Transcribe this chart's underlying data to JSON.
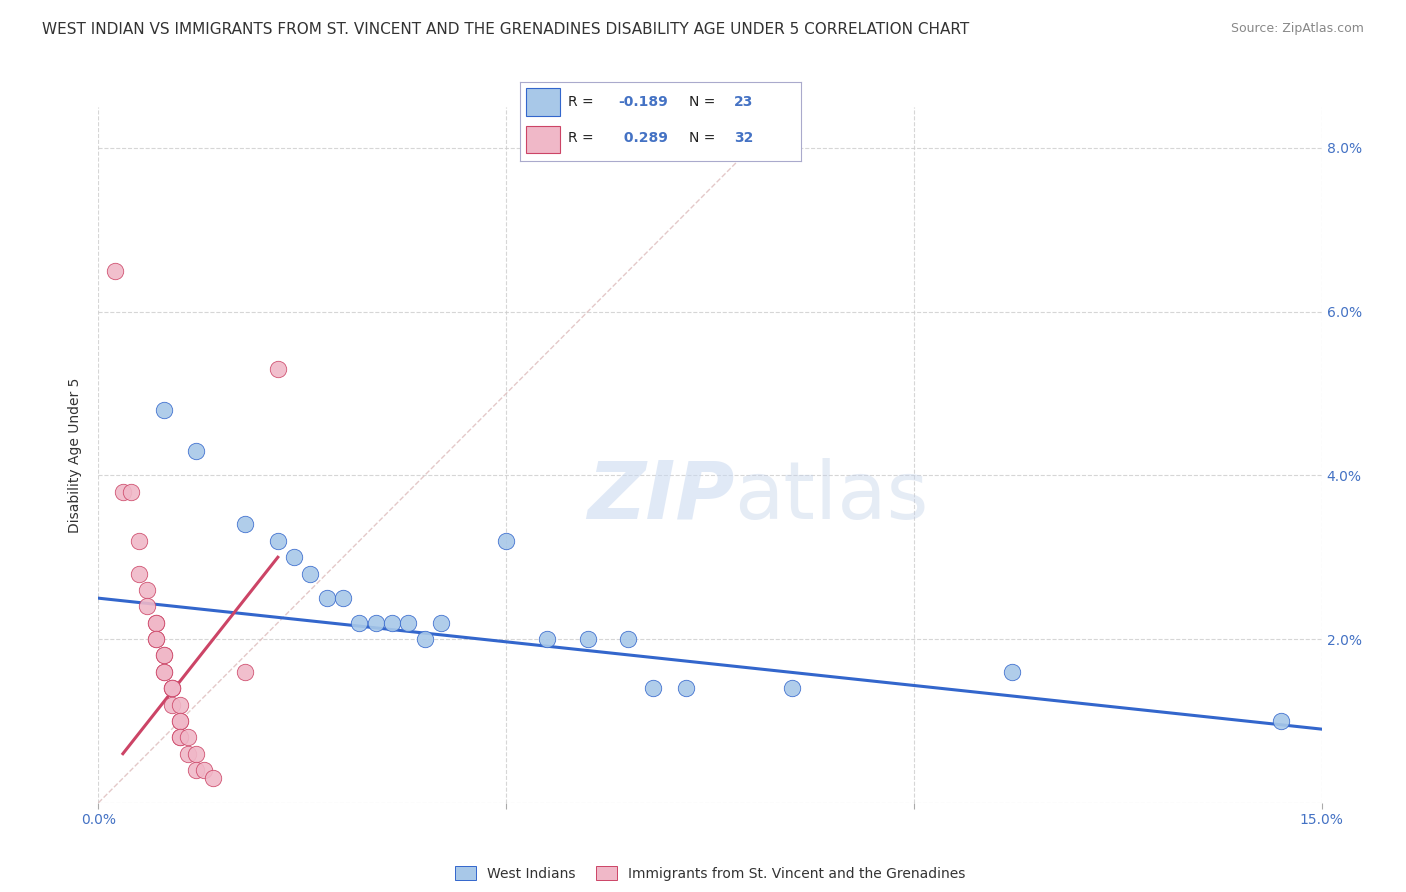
{
  "title": "WEST INDIAN VS IMMIGRANTS FROM ST. VINCENT AND THE GRENADINES DISABILITY AGE UNDER 5 CORRELATION CHART",
  "source": "Source: ZipAtlas.com",
  "ylabel": "Disability Age Under 5",
  "xlim": [
    0.0,
    0.15
  ],
  "ylim": [
    0.0,
    0.085
  ],
  "ytick_vals": [
    0.0,
    0.02,
    0.04,
    0.06,
    0.08
  ],
  "ytick_labels": [
    "",
    "2.0%",
    "4.0%",
    "6.0%",
    "8.0%"
  ],
  "xtick_vals": [
    0.0,
    0.05,
    0.1,
    0.15
  ],
  "xtick_labels": [
    "0.0%",
    "",
    "",
    "15.0%"
  ],
  "blue_R": -0.189,
  "blue_N": 23,
  "pink_R": 0.289,
  "pink_N": 32,
  "blue_scatter": [
    [
      0.008,
      0.048
    ],
    [
      0.012,
      0.043
    ],
    [
      0.018,
      0.034
    ],
    [
      0.022,
      0.032
    ],
    [
      0.024,
      0.03
    ],
    [
      0.026,
      0.028
    ],
    [
      0.028,
      0.025
    ],
    [
      0.03,
      0.025
    ],
    [
      0.032,
      0.022
    ],
    [
      0.034,
      0.022
    ],
    [
      0.036,
      0.022
    ],
    [
      0.038,
      0.022
    ],
    [
      0.04,
      0.02
    ],
    [
      0.042,
      0.022
    ],
    [
      0.05,
      0.032
    ],
    [
      0.055,
      0.02
    ],
    [
      0.06,
      0.02
    ],
    [
      0.065,
      0.02
    ],
    [
      0.068,
      0.014
    ],
    [
      0.072,
      0.014
    ],
    [
      0.085,
      0.014
    ],
    [
      0.112,
      0.016
    ],
    [
      0.145,
      0.01
    ]
  ],
  "pink_scatter": [
    [
      0.002,
      0.065
    ],
    [
      0.003,
      0.038
    ],
    [
      0.004,
      0.038
    ],
    [
      0.005,
      0.032
    ],
    [
      0.005,
      0.028
    ],
    [
      0.006,
      0.026
    ],
    [
      0.006,
      0.024
    ],
    [
      0.007,
      0.022
    ],
    [
      0.007,
      0.022
    ],
    [
      0.007,
      0.02
    ],
    [
      0.007,
      0.02
    ],
    [
      0.008,
      0.018
    ],
    [
      0.008,
      0.018
    ],
    [
      0.008,
      0.016
    ],
    [
      0.008,
      0.016
    ],
    [
      0.009,
      0.014
    ],
    [
      0.009,
      0.014
    ],
    [
      0.009,
      0.014
    ],
    [
      0.009,
      0.012
    ],
    [
      0.01,
      0.012
    ],
    [
      0.01,
      0.01
    ],
    [
      0.01,
      0.01
    ],
    [
      0.01,
      0.008
    ],
    [
      0.01,
      0.008
    ],
    [
      0.011,
      0.008
    ],
    [
      0.011,
      0.006
    ],
    [
      0.012,
      0.006
    ],
    [
      0.012,
      0.004
    ],
    [
      0.013,
      0.004
    ],
    [
      0.014,
      0.003
    ],
    [
      0.018,
      0.016
    ],
    [
      0.022,
      0.053
    ]
  ],
  "blue_line_x": [
    0.0,
    0.15
  ],
  "blue_line_y": [
    0.025,
    0.009
  ],
  "pink_line_x": [
    0.003,
    0.022
  ],
  "pink_line_y": [
    0.006,
    0.03
  ],
  "blue_color": "#a8c8e8",
  "pink_color": "#f0b8c8",
  "blue_line_color": "#3366cc",
  "pink_line_color": "#cc4466",
  "diagonal_color": "#ddbbbb",
  "background_color": "#ffffff",
  "title_fontsize": 11,
  "axis_label_fontsize": 10,
  "tick_fontsize": 10
}
